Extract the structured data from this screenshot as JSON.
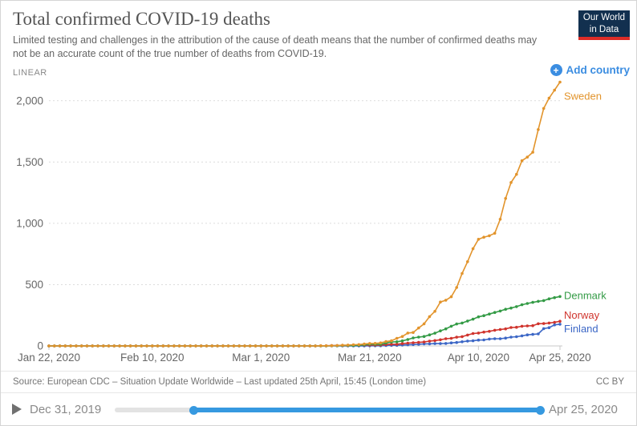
{
  "header": {
    "title": "Total confirmed COVID-19 deaths",
    "subtitle": "Limited testing and challenges in the attribution of the cause of death means that the number of confirmed deaths may not be an accurate count of the true number of deaths from COVID-19.",
    "logo": {
      "line1": "Our World",
      "line2": "in Data",
      "bg_color": "#12304f",
      "accent_color": "#dd2c27"
    }
  },
  "controls": {
    "scale_label": "LINEAR",
    "add_country": {
      "label": "Add country",
      "icon": "plus-circle-icon",
      "color": "#3b8de1"
    }
  },
  "chart_data": {
    "type": "line",
    "title": "Total confirmed COVID-19 deaths",
    "scale": "linear",
    "grid": "horizontal-dashed",
    "legend_position": "line-end-labels",
    "x_axis": {
      "start": "Jan 22, 2020",
      "end": "Apr 25, 2020",
      "total_days": 94,
      "tick_labels": [
        "Jan 22, 2020",
        "Feb 10, 2020",
        "Mar 1, 2020",
        "Mar 21, 2020",
        "Apr 10, 2020",
        "Apr 25, 2020"
      ],
      "tick_days": [
        0,
        19,
        39,
        59,
        79,
        94
      ]
    },
    "y_axis": {
      "lim": [
        0,
        2000
      ],
      "ticks": [
        0,
        500,
        1000,
        1500,
        2000
      ],
      "tick_labels": [
        "0",
        "500",
        "1,000",
        "1,500",
        "2,000"
      ]
    },
    "series": [
      {
        "name": "Finland",
        "color": "#3c67c6",
        "label_dy": 10,
        "values": [
          0,
          0,
          0,
          0,
          0,
          0,
          0,
          0,
          0,
          0,
          0,
          0,
          0,
          0,
          0,
          0,
          0,
          0,
          0,
          0,
          0,
          0,
          0,
          0,
          0,
          0,
          0,
          0,
          0,
          0,
          0,
          0,
          0,
          0,
          0,
          0,
          0,
          0,
          0,
          0,
          0,
          0,
          0,
          0,
          0,
          0,
          0,
          0,
          0,
          0,
          0,
          0,
          0,
          0,
          0,
          0,
          0,
          0,
          0,
          1,
          1,
          1,
          3,
          5,
          5,
          7,
          9,
          11,
          13,
          17,
          17,
          19,
          19,
          20,
          25,
          28,
          34,
          40,
          42,
          48,
          49,
          56,
          59,
          59,
          64,
          72,
          75,
          82,
          90,
          94,
          98,
          141,
          149,
          172,
          177
        ]
      },
      {
        "name": "Norway",
        "color": "#d0342d",
        "label_dy": -3,
        "values": [
          0,
          0,
          0,
          0,
          0,
          0,
          0,
          0,
          0,
          0,
          0,
          0,
          0,
          0,
          0,
          0,
          0,
          0,
          0,
          0,
          0,
          0,
          0,
          0,
          0,
          0,
          0,
          0,
          0,
          0,
          0,
          0,
          0,
          0,
          0,
          0,
          0,
          0,
          0,
          0,
          0,
          0,
          0,
          0,
          0,
          0,
          0,
          0,
          0,
          0,
          1,
          1,
          3,
          3,
          3,
          4,
          6,
          6,
          7,
          7,
          7,
          7,
          12,
          14,
          14,
          19,
          23,
          26,
          29,
          32,
          39,
          44,
          50,
          59,
          62,
          71,
          76,
          89,
          101,
          105,
          113,
          119,
          128,
          134,
          139,
          150,
          152,
          161,
          163,
          165,
          181,
          182,
          187,
          193,
          201
        ]
      },
      {
        "name": "Denmark",
        "color": "#349b46",
        "label_dy": 3,
        "values": [
          0,
          0,
          0,
          0,
          0,
          0,
          0,
          0,
          0,
          0,
          0,
          0,
          0,
          0,
          0,
          0,
          0,
          0,
          0,
          0,
          0,
          0,
          0,
          0,
          0,
          0,
          0,
          0,
          0,
          0,
          0,
          0,
          0,
          0,
          0,
          0,
          0,
          0,
          0,
          0,
          0,
          0,
          0,
          0,
          0,
          0,
          0,
          0,
          0,
          0,
          0,
          0,
          1,
          2,
          3,
          4,
          4,
          6,
          9,
          13,
          13,
          13,
          24,
          32,
          34,
          41,
          52,
          65,
          72,
          77,
          90,
          104,
          123,
          139,
          161,
          179,
          187,
          203,
          218,
          237,
          247,
          260,
          273,
          285,
          299,
          309,
          321,
          336,
          346,
          355,
          364,
          370,
          384,
          394,
          403
        ]
      },
      {
        "name": "Sweden",
        "color": "#e2942c",
        "label_dy": 22,
        "values": [
          0,
          0,
          0,
          0,
          0,
          0,
          0,
          0,
          0,
          0,
          0,
          0,
          0,
          0,
          0,
          0,
          0,
          0,
          0,
          0,
          0,
          0,
          0,
          0,
          0,
          0,
          0,
          0,
          0,
          0,
          0,
          0,
          0,
          0,
          0,
          0,
          0,
          0,
          0,
          0,
          0,
          0,
          0,
          0,
          0,
          0,
          0,
          0,
          0,
          0,
          1,
          1,
          2,
          3,
          6,
          7,
          10,
          11,
          16,
          20,
          21,
          25,
          36,
          42,
          62,
          77,
          105,
          110,
          146,
          180,
          239,
          282,
          358,
          373,
          401,
          477,
          591,
          687,
          793,
          870,
          887,
          899,
          919,
          1033,
          1203,
          1333,
          1400,
          1511,
          1540,
          1580,
          1765,
          1937,
          2021,
          2086,
          2152
        ]
      }
    ]
  },
  "footer": {
    "source": "Source: European CDC – Situation Update Worldwide – Last updated 25th April, 15:45 (London time)",
    "license": "CC BY"
  },
  "timeline": {
    "play_icon": "play-triangle",
    "start_label": "Dec 31, 2019",
    "end_label": "Apr 25, 2020",
    "track_color": "#e3e3e3",
    "range_color": "#3699e0",
    "selected_start_frac": 0.185,
    "selected_end_frac": 1.0
  }
}
